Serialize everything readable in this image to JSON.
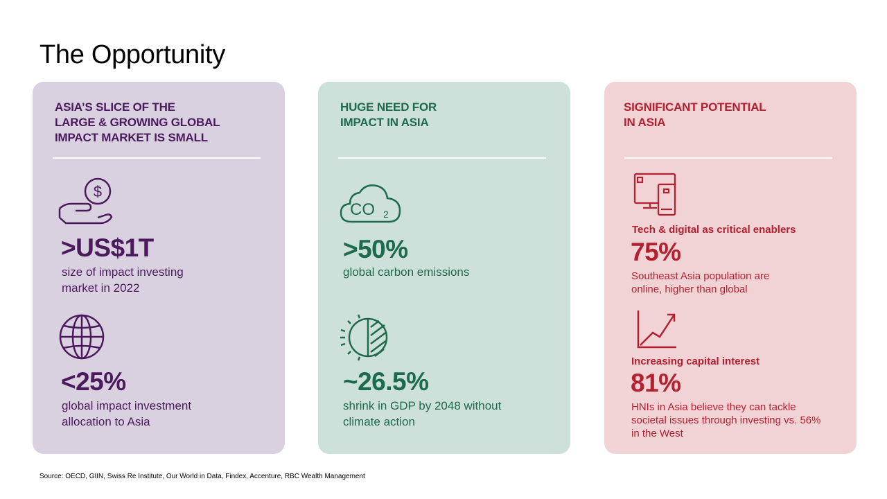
{
  "page": {
    "title": "The Opportunity",
    "source": "Source: OECD,  GIIN,  Swiss Re Institute, Our World in Data, Findex, Accenture, RBC Wealth Management"
  },
  "colors": {
    "purple_card": "#d9d0e0",
    "purple_text": "#4a1a5c",
    "green_card": "#cde0d9",
    "green_text": "#1d6b4c",
    "red_card": "#f1d3d6",
    "red_text": "#b3202f"
  },
  "cards": [
    {
      "heading": [
        "ASIA’S SLICE OF THE",
        "LARGE & GROWING GLOBAL",
        "IMPACT MARKET IS SMALL"
      ],
      "stats": [
        {
          "icon": "hand-dollar-icon",
          "value": ">US$1T",
          "desc": [
            "size of impact investing",
            "market in 2022"
          ]
        },
        {
          "icon": "globe-icon",
          "value": "<25%",
          "desc": [
            "global impact investment",
            "allocation to Asia"
          ]
        }
      ]
    },
    {
      "heading": [
        "HUGE NEED FOR",
        "IMPACT IN ASIA"
      ],
      "stats": [
        {
          "icon": "co2-cloud-icon",
          "value": ">50%",
          "desc": [
            "global carbon emissions"
          ]
        },
        {
          "icon": "half-sun-icon",
          "value": "~26.5%",
          "desc": [
            "shrink in GDP by 2048 without",
            "climate action"
          ]
        }
      ]
    },
    {
      "heading": [
        "SIGNIFICANT POTENTIAL",
        "IN ASIA"
      ],
      "stats": [
        {
          "icon": "devices-icon",
          "label": "Tech & digital as critical enablers",
          "value": "75%",
          "desc": [
            "Southeast Asia population are",
            "online, higher than global"
          ]
        },
        {
          "icon": "growth-chart-icon",
          "label": "Increasing capital interest",
          "value": "81%",
          "desc": [
            "HNIs in Asia believe they can tackle",
            "societal issues through  investing vs. 56%",
            "in the West"
          ]
        }
      ]
    }
  ]
}
